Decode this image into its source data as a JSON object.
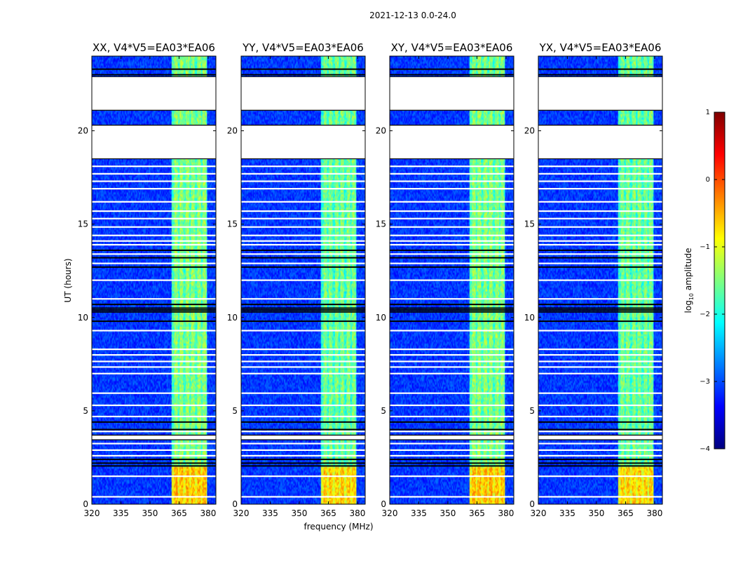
{
  "chart_data": {
    "type": "heatmap",
    "title": "2021-12-13 0.0-24.0",
    "xlabel": "frequency (MHz)",
    "ylabel": "UT (hours)",
    "xlim": [
      320,
      384
    ],
    "ylim": [
      0,
      24
    ],
    "x_ticks": [
      320,
      335,
      350,
      365,
      380
    ],
    "y_ticks": [
      0,
      5,
      10,
      15,
      20
    ],
    "rfi_band_mhz": [
      361,
      379
    ],
    "panels": [
      {
        "title": "XX, V4*V5=EA03*EA06"
      },
      {
        "title": "YY, V4*V5=EA03*EA06"
      },
      {
        "title": "XY, V4*V5=EA03*EA06"
      },
      {
        "title": "YX, V4*V5=EA03*EA06"
      }
    ],
    "colorbar": {
      "label_prefix": "log",
      "label_subscript": "10",
      "label_suffix": " amplitude",
      "range": [
        -4,
        1
      ],
      "ticks": [
        "1",
        "0",
        "−1",
        "−2",
        "−3",
        "−4"
      ],
      "colors": [
        "#00007f",
        "#0000ff",
        "#007fff",
        "#00ffff",
        "#7fff7f",
        "#ffff00",
        "#ff7f00",
        "#ff0000",
        "#7f0000"
      ]
    },
    "flagged_gaps_hours": [
      [
        21.1,
        22.9
      ],
      [
        18.5,
        20.3
      ],
      [
        3.45,
        3.7
      ]
    ],
    "flag_lines_hours": [
      0.4,
      1.5,
      2.6,
      2.9,
      3.25,
      3.9,
      4.7,
      5.3,
      5.95,
      7.0,
      7.35,
      7.65,
      8.0,
      8.3,
      9.3,
      11.0,
      12.0,
      12.9,
      13.4,
      13.9,
      14.1,
      14.4,
      14.85,
      15.3,
      15.7,
      16.2,
      16.9,
      17.3,
      17.7,
      18.1
    ],
    "dark_lines_hours": [
      2.05,
      2.2,
      2.4,
      4.0,
      4.4,
      9.8,
      10.3,
      10.4,
      10.5,
      10.7,
      12.7,
      13.2,
      13.6,
      20.1,
      20.2,
      21.5,
      23.0,
      23.3
    ]
  }
}
